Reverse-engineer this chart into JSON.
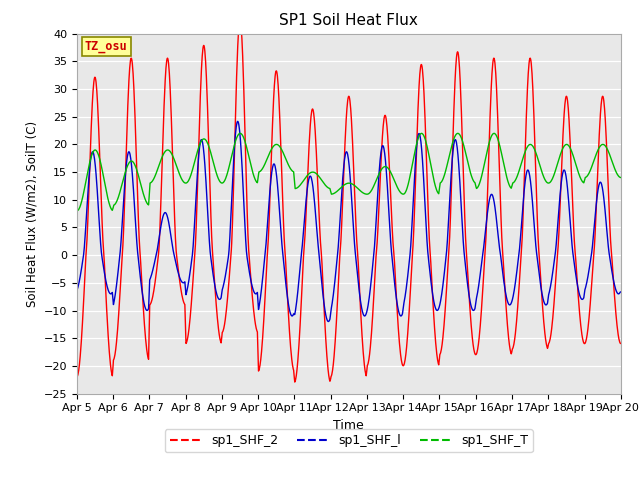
{
  "title": "SP1 Soil Heat Flux",
  "xlabel": "Time",
  "ylabel": "Soil Heat Flux (W/m2), SoilT (C)",
  "ylim": [
    -25,
    40
  ],
  "yticks": [
    -25,
    -20,
    -15,
    -10,
    -5,
    0,
    5,
    10,
    15,
    20,
    25,
    30,
    35,
    40
  ],
  "xtick_labels": [
    "Apr 5",
    "Apr 6",
    "Apr 7",
    "Apr 8",
    "Apr 9",
    "Apr 10",
    "Apr 11",
    "Apr 12",
    "Apr 13",
    "Apr 14",
    "Apr 15",
    "Apr 16",
    "Apr 17",
    "Apr 18",
    "Apr 19",
    "Apr 20"
  ],
  "legend_labels": [
    "sp1_SHF_2",
    "sp1_SHF_l",
    "sp1_SHF_T"
  ],
  "line_colors": [
    "#ff0000",
    "#0000cd",
    "#00bb00"
  ],
  "tz_label": "TZ_osu",
  "plot_bg": "#e8e8e8",
  "fig_bg": "#ffffff",
  "grid_color": "#ffffff"
}
